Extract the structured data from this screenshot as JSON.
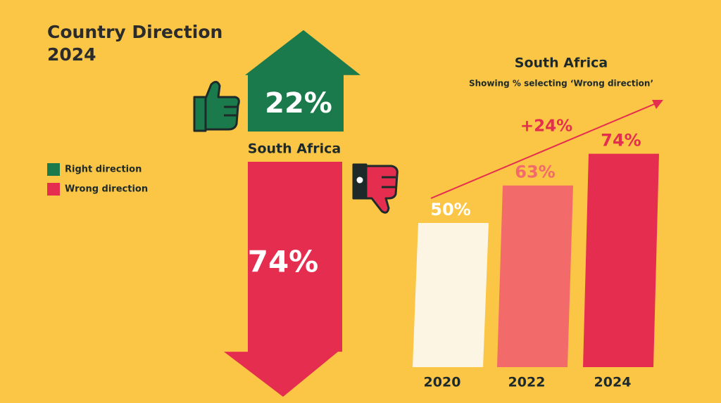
{
  "chart_data": [
    {
      "type": "arrow",
      "title": "Country Direction 2024",
      "label": "South Africa",
      "series": [
        {
          "name": "Right direction",
          "color": "#1b7a4b",
          "values": [
            22
          ],
          "value_labels": [
            "22%"
          ]
        },
        {
          "name": "Wrong direction",
          "color": "#e52e4f",
          "values": [
            74
          ],
          "value_labels": [
            "74%"
          ]
        }
      ]
    },
    {
      "type": "bar",
      "title": "South Africa",
      "subtitle": "Showing % selecting ‘Wrong direction’",
      "categories": [
        "2020",
        "2022",
        "2024"
      ],
      "values": [
        50,
        63,
        74
      ],
      "value_labels": [
        "50%",
        "63%",
        "74%"
      ],
      "colors": [
        "#fdf5e4",
        "#f26a6a",
        "#e52e4f"
      ],
      "label_colors": [
        "#ffffff",
        "#f26a6a",
        "#e52e4f"
      ],
      "annotation": "+24%",
      "annotation_color": "#e52e4f"
    }
  ]
}
